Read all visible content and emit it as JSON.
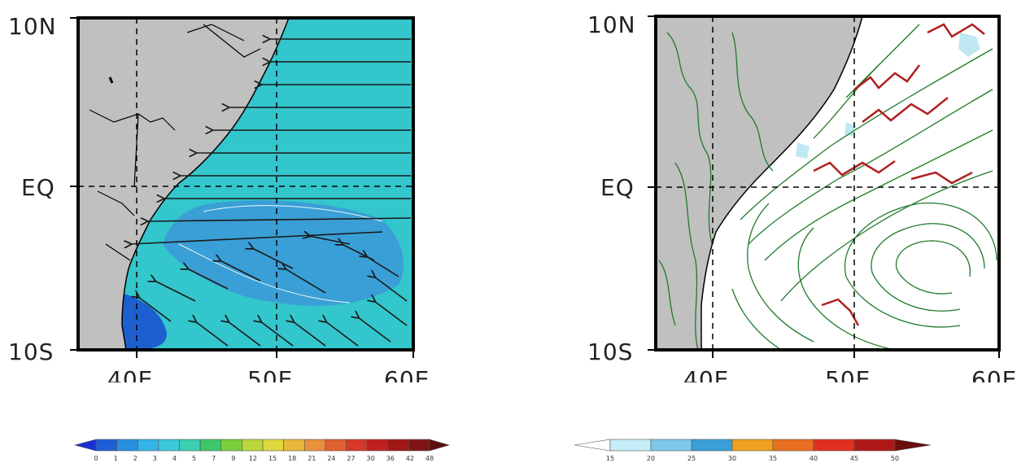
{
  "left_map": {
    "lat_labels": [
      "10N",
      "EQ",
      "10S"
    ],
    "lon_labels": [
      "40E",
      "50E",
      "60E"
    ],
    "colors": {
      "land": "#c0c0c0",
      "ocean_main": "#33c6cc",
      "ocean_deep": "#3a9fd6",
      "ocean_dark": "#1e5fd0",
      "coast": "#000000",
      "arrow": "#1a1a1a"
    }
  },
  "right_map": {
    "lat_labels": [
      "10N",
      "EQ",
      "10S"
    ],
    "lon_labels": [
      "40E",
      "50E",
      "60E"
    ],
    "colors": {
      "land": "#c0c0c0",
      "ocean": "#ffffff",
      "streamline": "#1f7a2a",
      "highlight": "#b02020",
      "shade": "#bfe8f2"
    }
  },
  "left_colorbar": {
    "ticks": [
      "0",
      "1",
      "2",
      "3",
      "4",
      "5",
      "7",
      "9",
      "12",
      "15",
      "18",
      "21",
      "24",
      "27",
      "30",
      "36",
      "42",
      "48"
    ],
    "colors": [
      "#1a2fd0",
      "#1e5fd8",
      "#2a8ee0",
      "#33b4e6",
      "#39c9d8",
      "#3ccfb4",
      "#3cc86a",
      "#7ccf3c",
      "#b8d83c",
      "#e0d83c",
      "#e8b83c",
      "#e8903c",
      "#e06030",
      "#d83828",
      "#c02020",
      "#a01818",
      "#801414",
      "#5c0e0e"
    ]
  },
  "right_colorbar": {
    "ticks": [
      "15",
      "20",
      "25",
      "30",
      "35",
      "40",
      "45",
      "50"
    ],
    "colors": [
      "#ffffff",
      "#c6eef8",
      "#7fc8ec",
      "#3a9fd6",
      "#f0a020",
      "#e87020",
      "#e03020",
      "#b01818",
      "#6a0e0e"
    ]
  }
}
